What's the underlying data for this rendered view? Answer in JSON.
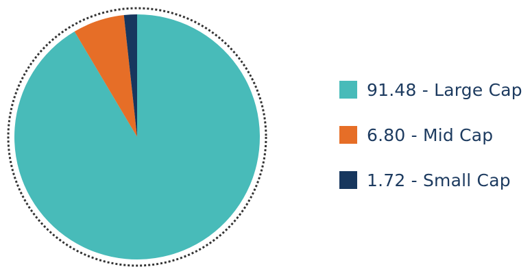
{
  "chart_data": {
    "type": "pie",
    "title": "",
    "slices": [
      {
        "label": "Large Cap",
        "value": 91.48,
        "value_text": "91.48",
        "color": "#48bbb9"
      },
      {
        "label": "Mid Cap",
        "value": 6.8,
        "value_text": "6.80",
        "color": "#e66e27"
      },
      {
        "label": "Small Cap",
        "value": 1.72,
        "value_text": "1.72",
        "color": "#17375e"
      }
    ],
    "legend": {
      "placement": "right",
      "items": [
        {
          "text": "91.48 - Large Cap",
          "color": "#48bbb9"
        },
        {
          "text": "6.80 - Mid Cap",
          "color": "#e66e27"
        },
        {
          "text": "1.72 - Small Cap",
          "color": "#17375e"
        }
      ]
    },
    "outline_style": "dotted circle",
    "outline_color": "#333333",
    "legend_text_color": "#1c3a5f"
  }
}
